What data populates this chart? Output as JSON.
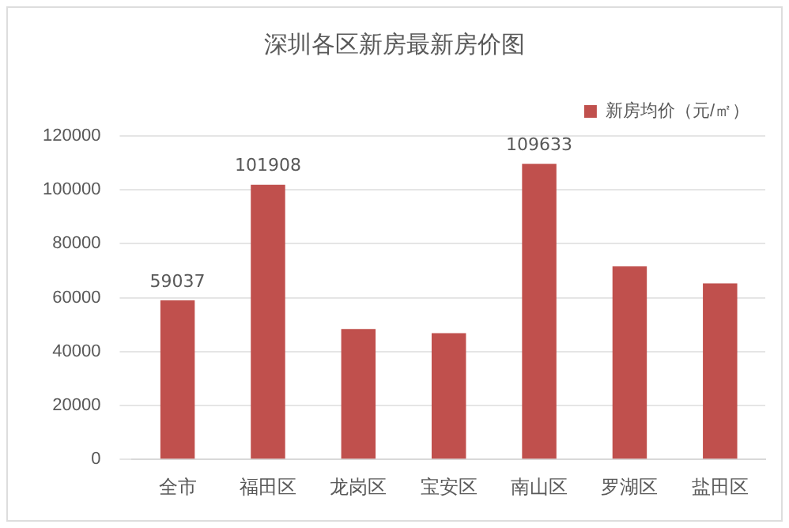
{
  "chart_data": {
    "type": "bar",
    "title": "深圳各区新房最新房价图",
    "categories": [
      "全市",
      "福田区",
      "龙岗区",
      "宝安区",
      "南山区",
      "罗湖区",
      "盐田区"
    ],
    "series": [
      {
        "name": "新房均价（元/㎡）",
        "color": "#c0504d",
        "values": [
          59037,
          101908,
          48400,
          46800,
          109633,
          71600,
          65300
        ],
        "value_labels": [
          "59037",
          "101908",
          null,
          null,
          "109633",
          null,
          null
        ]
      }
    ],
    "ylim": [
      0,
      120000
    ],
    "yticks": [
      0,
      20000,
      40000,
      60000,
      80000,
      100000,
      120000
    ],
    "grid": "y",
    "legend": "top right"
  }
}
